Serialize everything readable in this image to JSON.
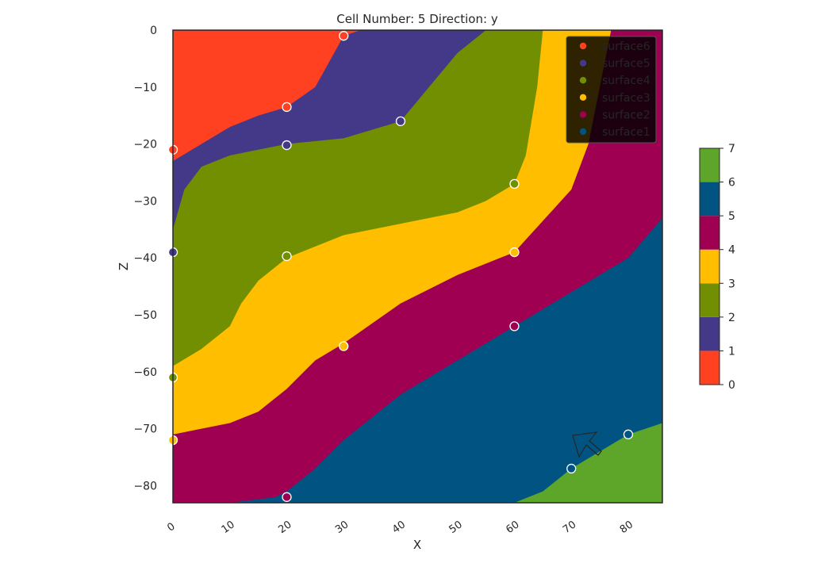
{
  "chart_data": {
    "type": "heatmap",
    "title": "Cell Number: 5 Direction: y",
    "xlabel": "X",
    "ylabel": "Z",
    "xlim": [
      0,
      86
    ],
    "ylim": [
      -83,
      0
    ],
    "x_ticks": [
      0,
      10,
      20,
      30,
      40,
      50,
      60,
      70,
      80
    ],
    "y_ticks": [
      0,
      -10,
      -20,
      -30,
      -40,
      -50,
      -60,
      -70,
      -80
    ],
    "grid": false,
    "legend_position": "top-right",
    "layers": [
      {
        "id": 1,
        "color": "#ff4122"
      },
      {
        "id": 2,
        "color": "#443988"
      },
      {
        "id": 3,
        "color": "#728f02"
      },
      {
        "id": 4,
        "color": "#ffbe00"
      },
      {
        "id": 5,
        "color": "#9f0052"
      },
      {
        "id": 6,
        "color": "#015482"
      },
      {
        "id": 7,
        "color": "#5da629"
      }
    ],
    "boundaries": [
      {
        "layer_above": 1,
        "points": [
          [
            0,
            -23
          ],
          [
            5,
            -20
          ],
          [
            10,
            -17
          ],
          [
            15,
            -15
          ],
          [
            20,
            -13.5
          ],
          [
            25,
            -10
          ],
          [
            30,
            -1
          ],
          [
            33,
            0
          ]
        ]
      },
      {
        "layer_above": 2,
        "points": [
          [
            0,
            -35
          ],
          [
            2,
            -28
          ],
          [
            5,
            -24
          ],
          [
            10,
            -22
          ],
          [
            15,
            -21
          ],
          [
            20,
            -20
          ],
          [
            30,
            -19
          ],
          [
            40,
            -16
          ],
          [
            45,
            -10
          ],
          [
            50,
            -4
          ],
          [
            55,
            0
          ]
        ]
      },
      {
        "layer_above": 3,
        "points": [
          [
            0,
            -59
          ],
          [
            5,
            -56
          ],
          [
            10,
            -52
          ],
          [
            12,
            -48
          ],
          [
            15,
            -44
          ],
          [
            20,
            -40
          ],
          [
            30,
            -36
          ],
          [
            40,
            -34
          ],
          [
            50,
            -32
          ],
          [
            55,
            -30
          ],
          [
            60,
            -27
          ],
          [
            62,
            -22
          ],
          [
            64,
            -10
          ],
          [
            65,
            0
          ]
        ]
      },
      {
        "layer_above": 4,
        "points": [
          [
            0,
            -71
          ],
          [
            5,
            -70
          ],
          [
            10,
            -69
          ],
          [
            15,
            -67
          ],
          [
            20,
            -63
          ],
          [
            25,
            -58
          ],
          [
            30,
            -55
          ],
          [
            40,
            -48
          ],
          [
            50,
            -43
          ],
          [
            60,
            -39
          ],
          [
            70,
            -28
          ],
          [
            73,
            -20
          ],
          [
            75,
            -10
          ],
          [
            76,
            -5
          ],
          [
            77,
            0
          ]
        ]
      },
      {
        "layer_above": 5,
        "points": [
          [
            0,
            -83
          ],
          [
            10,
            -83
          ],
          [
            18,
            -82
          ],
          [
            20,
            -81
          ],
          [
            25,
            -77
          ],
          [
            30,
            -72
          ],
          [
            40,
            -64
          ],
          [
            50,
            -58
          ],
          [
            60,
            -52
          ],
          [
            70,
            -46
          ],
          [
            80,
            -40
          ],
          [
            86,
            -33
          ]
        ]
      },
      {
        "layer_above": 6,
        "points": [
          [
            60,
            -83
          ],
          [
            65,
            -81
          ],
          [
            70,
            -77
          ],
          [
            75,
            -74
          ],
          [
            80,
            -71
          ],
          [
            86,
            -69
          ]
        ]
      }
    ],
    "legend": [
      {
        "label": "surface6",
        "color": "#ff4122"
      },
      {
        "label": "surface5",
        "color": "#443988"
      },
      {
        "label": "surface4",
        "color": "#728f02"
      },
      {
        "label": "surface3",
        "color": "#ffbe00"
      },
      {
        "label": "surface2",
        "color": "#9f0052"
      },
      {
        "label": "surface1",
        "color": "#015482"
      }
    ],
    "points": [
      {
        "x": 30,
        "y": -1,
        "color": "#ff4122"
      },
      {
        "x": 20,
        "y": -13.5,
        "color": "#ff4122"
      },
      {
        "x": 0,
        "y": -21,
        "color": "#ff4122"
      },
      {
        "x": 20,
        "y": -20.2,
        "color": "#443988"
      },
      {
        "x": 40,
        "y": -16,
        "color": "#443988"
      },
      {
        "x": 0,
        "y": -39,
        "color": "#443988"
      },
      {
        "x": 20,
        "y": -39.7,
        "color": "#728f02"
      },
      {
        "x": 60,
        "y": -27,
        "color": "#728f02"
      },
      {
        "x": 0,
        "y": -61,
        "color": "#728f02"
      },
      {
        "x": 60,
        "y": -39,
        "color": "#ffbe00"
      },
      {
        "x": 30,
        "y": -55.5,
        "color": "#ffbe00"
      },
      {
        "x": 0,
        "y": -72,
        "color": "#ffbe00"
      },
      {
        "x": 60,
        "y": -52,
        "color": "#9f0052"
      },
      {
        "x": 20,
        "y": -82,
        "color": "#9f0052"
      },
      {
        "x": 80,
        "y": -71,
        "color": "#015482"
      },
      {
        "x": 70,
        "y": -77,
        "color": "#015482"
      }
    ],
    "colorbar": {
      "range": [
        0,
        7
      ],
      "ticks": [
        0,
        1,
        2,
        3,
        4,
        5,
        6,
        7
      ]
    },
    "annotation_icon": "cursor-arrow-icon"
  }
}
